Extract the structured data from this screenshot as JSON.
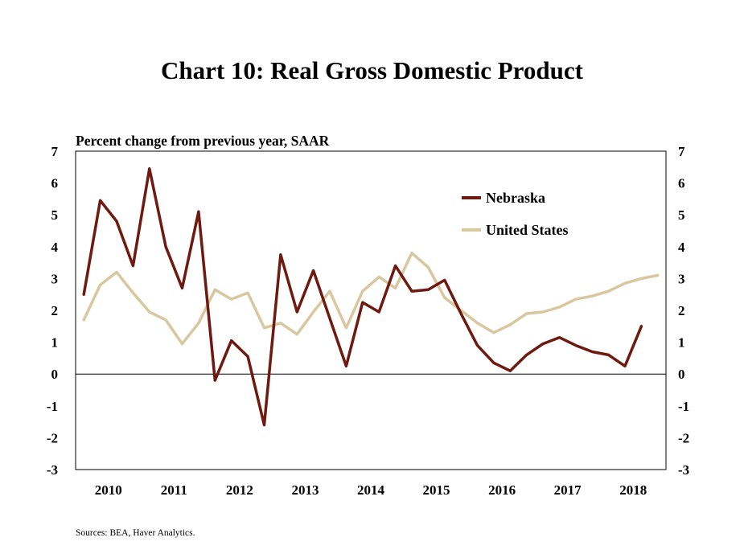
{
  "title": "Chart 10: Real Gross Domestic Product",
  "source": "Sources: BEA, Haver Analytics.",
  "chart_data": {
    "type": "line",
    "title": "Chart 10: Real Gross Domestic Product",
    "ylabel": "Percent change from previous year, SAAR",
    "xlabel": "",
    "ylim": [
      -3,
      7
    ],
    "yticks": [
      "7",
      "6",
      "5",
      "4",
      "3",
      "2",
      "1",
      "0",
      "-1",
      "-2",
      "-3"
    ],
    "xticks": [
      "2010",
      "2011",
      "2012",
      "2013",
      "2014",
      "2015",
      "2016",
      "2017",
      "2018"
    ],
    "x": [
      "2010Q1",
      "2010Q2",
      "2010Q3",
      "2010Q4",
      "2011Q1",
      "2011Q2",
      "2011Q3",
      "2011Q4",
      "2012Q1",
      "2012Q2",
      "2012Q3",
      "2012Q4",
      "2013Q1",
      "2013Q2",
      "2013Q3",
      "2013Q4",
      "2014Q1",
      "2014Q2",
      "2014Q3",
      "2014Q4",
      "2015Q1",
      "2015Q2",
      "2015Q3",
      "2015Q4",
      "2016Q1",
      "2016Q2",
      "2016Q3",
      "2016Q4",
      "2017Q1",
      "2017Q2",
      "2017Q3",
      "2017Q4",
      "2018Q1",
      "2018Q2",
      "2018Q3",
      "2018Q4"
    ],
    "legend_position": "top-right",
    "grid": false,
    "series": [
      {
        "name": "Nebraska",
        "color": "#6e1a10",
        "values": [
          2.5,
          5.45,
          4.8,
          3.4,
          6.45,
          4.0,
          2.7,
          5.1,
          -0.2,
          1.05,
          0.55,
          -1.6,
          3.75,
          1.95,
          3.25,
          1.75,
          0.25,
          2.25,
          1.95,
          3.4,
          2.6,
          2.65,
          2.95,
          1.9,
          0.9,
          0.35,
          0.1,
          0.6,
          0.95,
          1.15,
          0.9,
          0.7,
          0.6,
          0.25,
          1.5,
          null
        ]
      },
      {
        "name": "United States",
        "color": "#d8c79f",
        "values": [
          1.7,
          2.8,
          3.2,
          2.55,
          1.95,
          1.7,
          0.95,
          1.6,
          2.65,
          2.35,
          2.55,
          1.45,
          1.6,
          1.25,
          1.95,
          2.6,
          1.45,
          2.6,
          3.05,
          2.7,
          3.8,
          3.35,
          2.4,
          2.0,
          1.6,
          1.3,
          1.55,
          1.9,
          1.95,
          2.1,
          2.35,
          2.45,
          2.6,
          2.85,
          3.0,
          3.1
        ]
      }
    ]
  }
}
